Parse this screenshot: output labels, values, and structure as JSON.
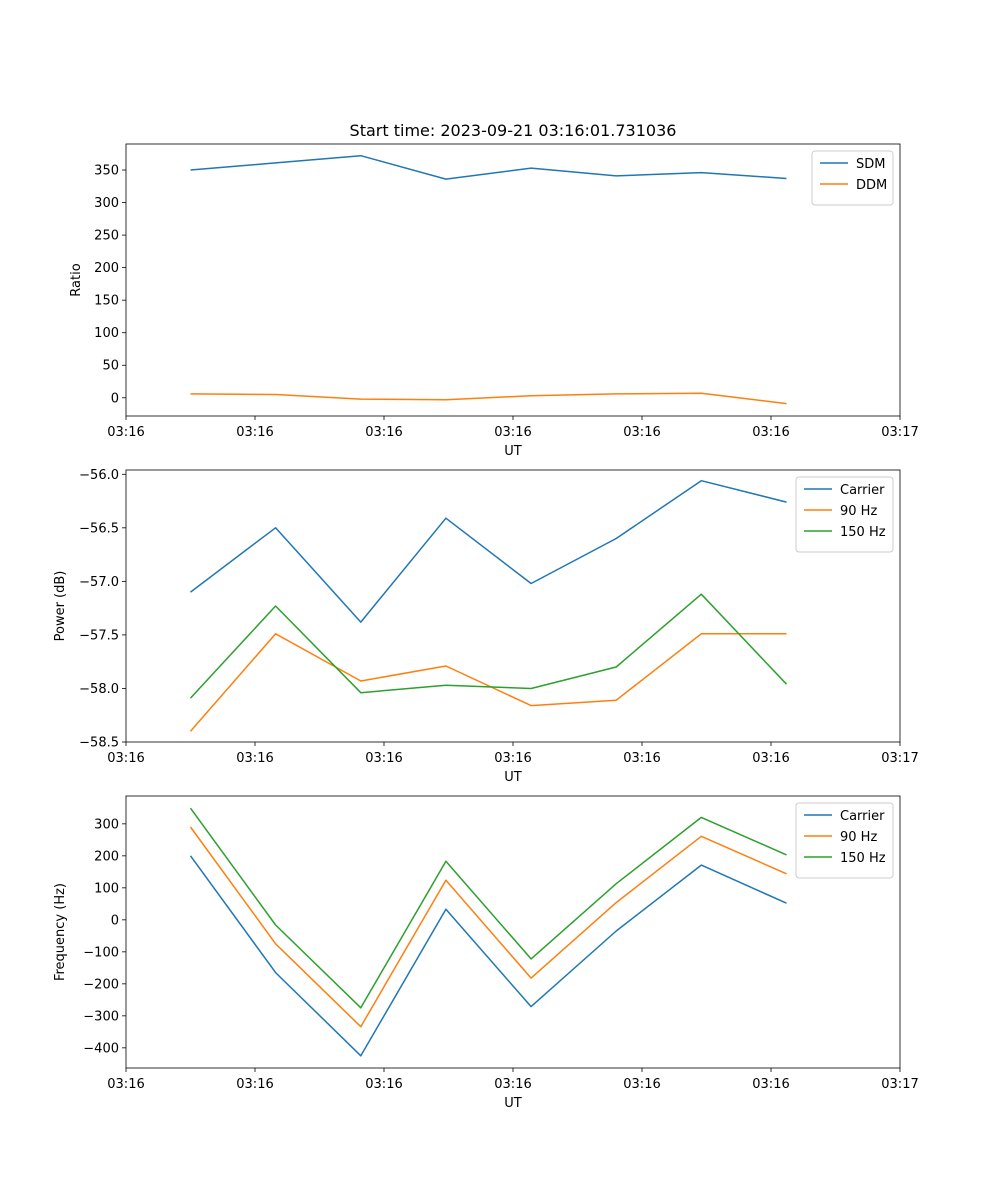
{
  "chart_data": [
    {
      "type": "line",
      "title": "Start time: 2023-09-21 03:16:01.731036",
      "xlabel": "UT",
      "ylabel": "Ratio",
      "x": [
        0.5,
        1.16,
        1.82,
        2.48,
        3.14,
        3.8,
        4.46,
        5.12
      ],
      "xlim": [
        0,
        6
      ],
      "x_ticks": [
        0,
        1,
        2,
        3,
        4,
        5,
        6
      ],
      "x_tick_labels": [
        "03:16",
        "03:16",
        "03:16",
        "03:16",
        "03:16",
        "03:16",
        "03:17"
      ],
      "ylim": [
        -28,
        390
      ],
      "y_ticks": [
        0,
        50,
        100,
        150,
        200,
        250,
        300,
        350
      ],
      "y_tick_labels": [
        "0",
        "50",
        "100",
        "150",
        "200",
        "250",
        "300",
        "350"
      ],
      "legend": "top-right",
      "series": [
        {
          "name": "SDM",
          "color": "#1f77b4",
          "values": [
            350,
            361,
            372,
            336,
            353,
            341,
            346,
            337
          ]
        },
        {
          "name": "DDM",
          "color": "#ff7f0e",
          "values": [
            6,
            5,
            -2,
            -3,
            3,
            6,
            7,
            -9
          ]
        }
      ]
    },
    {
      "type": "line",
      "title": "",
      "xlabel": "UT",
      "ylabel": "Power (dB)",
      "x": [
        0.5,
        1.16,
        1.82,
        2.48,
        3.14,
        3.8,
        4.46,
        5.12
      ],
      "xlim": [
        0,
        6
      ],
      "x_ticks": [
        0,
        1,
        2,
        3,
        4,
        5,
        6
      ],
      "x_tick_labels": [
        "03:16",
        "03:16",
        "03:16",
        "03:16",
        "03:16",
        "03:16",
        "03:17"
      ],
      "ylim": [
        -58.5,
        -55.96
      ],
      "y_ticks": [
        -58.5,
        -58.0,
        -57.5,
        -57.0,
        -56.5,
        -56.0
      ],
      "y_tick_labels": [
        "−58.5",
        "−58.0",
        "−57.5",
        "−57.0",
        "−56.5",
        "−56.0"
      ],
      "legend": "top-right",
      "series": [
        {
          "name": "Carrier",
          "color": "#1f77b4",
          "values": [
            -57.1,
            -56.5,
            -57.38,
            -56.41,
            -57.02,
            -56.6,
            -56.06,
            -56.26
          ]
        },
        {
          "name": "90 Hz",
          "color": "#ff7f0e",
          "values": [
            -58.4,
            -57.49,
            -57.93,
            -57.79,
            -58.16,
            -58.11,
            -57.49,
            -57.49
          ]
        },
        {
          "name": "150 Hz",
          "color": "#2ca02c",
          "values": [
            -58.09,
            -57.23,
            -58.04,
            -57.97,
            -58.0,
            -57.8,
            -57.12,
            -57.96
          ]
        }
      ]
    },
    {
      "type": "line",
      "title": "",
      "xlabel": "UT",
      "ylabel": "Frequency (Hz)",
      "x": [
        0.5,
        1.16,
        1.82,
        2.48,
        3.14,
        3.8,
        4.46,
        5.12
      ],
      "xlim": [
        0,
        6
      ],
      "x_ticks": [
        0,
        1,
        2,
        3,
        4,
        5,
        6
      ],
      "x_tick_labels": [
        "03:16",
        "03:16",
        "03:16",
        "03:16",
        "03:16",
        "03:16",
        "03:17"
      ],
      "ylim": [
        -463,
        387
      ],
      "y_ticks": [
        -400,
        -300,
        -200,
        -100,
        0,
        100,
        200,
        300
      ],
      "y_tick_labels": [
        "−400",
        "−300",
        "−200",
        "−100",
        "0",
        "100",
        "200",
        "300"
      ],
      "legend": "top-right",
      "series": [
        {
          "name": "Carrier",
          "color": "#1f77b4",
          "values": [
            200,
            -165,
            -425,
            33,
            -271,
            -35,
            171,
            52
          ]
        },
        {
          "name": "90 Hz",
          "color": "#ff7f0e",
          "values": [
            290,
            -75,
            -334,
            124,
            -182,
            54,
            261,
            144
          ]
        },
        {
          "name": "150 Hz",
          "color": "#2ca02c",
          "values": [
            349,
            -16,
            -275,
            183,
            -122,
            113,
            320,
            203
          ]
        }
      ]
    }
  ]
}
